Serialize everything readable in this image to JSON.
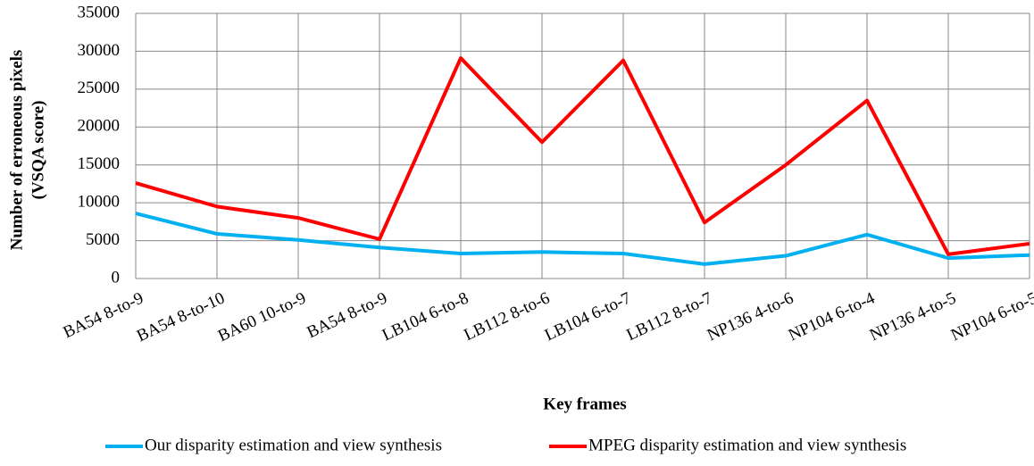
{
  "chart_data": {
    "type": "line",
    "y_label": [
      "Number of erroneous pixels",
      "(VSQA score)"
    ],
    "x_label": "Key frames",
    "categories": [
      "BA54 8-to-9",
      "BA54 8-to-10",
      "BA60 10-to-9",
      "BA54 8-to-9",
      "LB104 6-to-8",
      "LB112 8-to-6",
      "LB104 6-to-7",
      "LB112 8-to-7",
      "NP136 4-to-6",
      "NP104 6-to-4",
      "NP136 4-to-5",
      "NP104 6-to-5"
    ],
    "series": [
      {
        "name": "Our disparity estimation and view synthesis",
        "color": "#00b0f0",
        "values": [
          8600,
          5900,
          5100,
          4100,
          3300,
          3500,
          3300,
          1900,
          3000,
          5800,
          2700,
          3100
        ]
      },
      {
        "name": "MPEG disparity estimation and view synthesis",
        "color": "#ff0000",
        "values": [
          12600,
          9500,
          8000,
          5200,
          29100,
          18000,
          28800,
          7400,
          15000,
          23500,
          3200,
          4600
        ]
      }
    ],
    "ylim": [
      0,
      35000
    ],
    "yticks": [
      0,
      5000,
      10000,
      15000,
      20000,
      25000,
      30000,
      35000
    ],
    "grid": true,
    "legend": "bottom"
  }
}
